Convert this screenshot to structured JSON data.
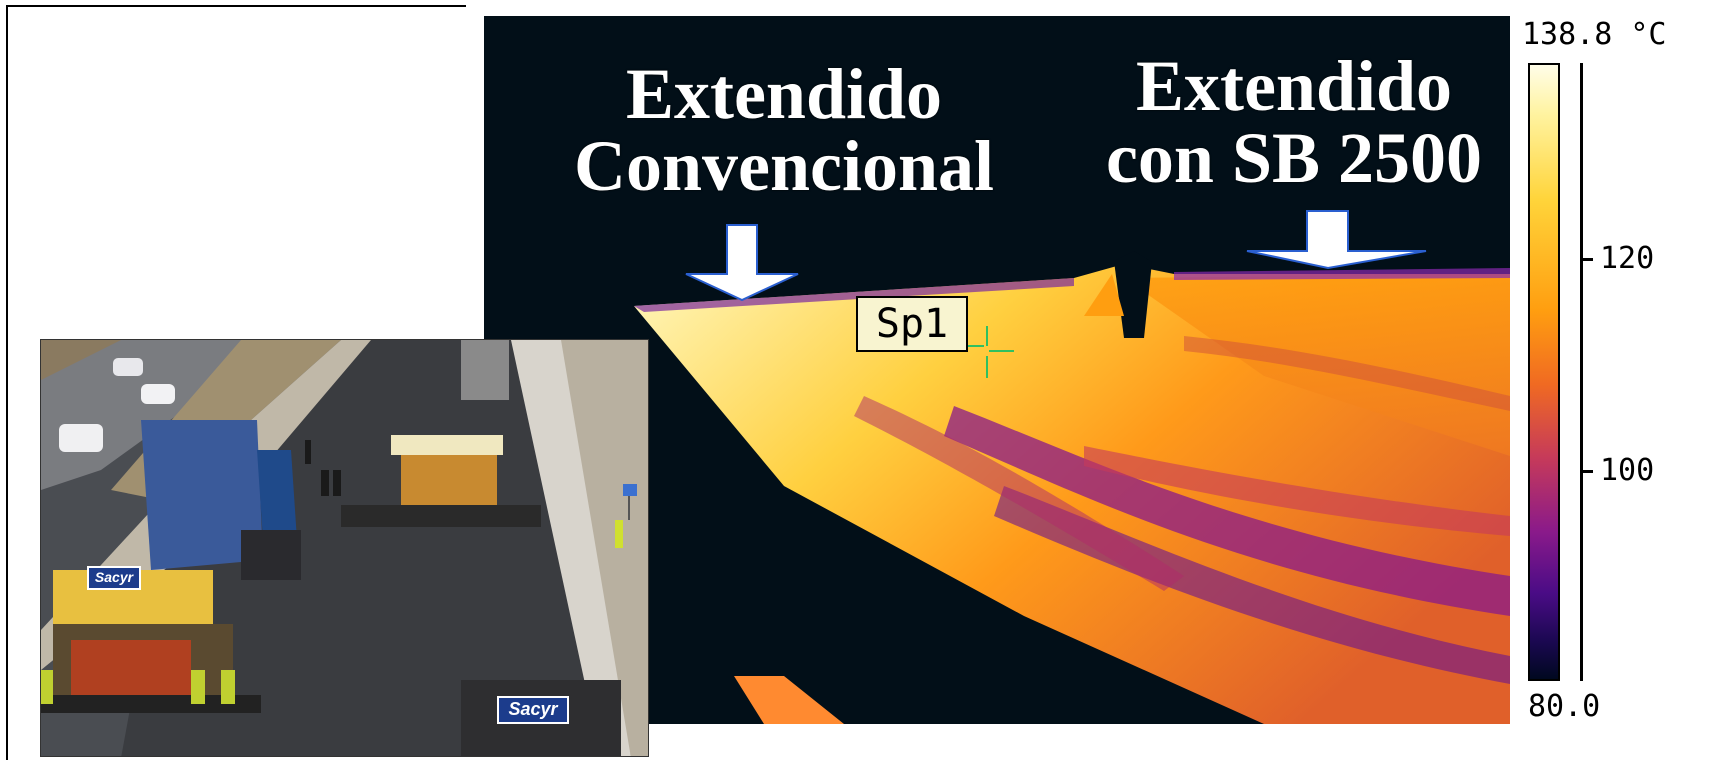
{
  "thermal_image": {
    "label_conventional": [
      "Extendido",
      "Convencional"
    ],
    "label_sb2500": [
      "Extendido",
      "con SB 2500"
    ],
    "spot_label": "Sp1"
  },
  "color_scale": {
    "max_label": "138.8 °C",
    "min_label": "80.0",
    "ticks": [
      "120",
      "100"
    ]
  },
  "photo_inset": {
    "sacyr_logo_1": "Sacyr",
    "sacyr_logo_2": "Sacyr"
  },
  "colors": {
    "thermal_background": "#020f18",
    "hot": "#fff3a0",
    "warm": "#ff9e10",
    "cool": "#8a1a8a"
  }
}
